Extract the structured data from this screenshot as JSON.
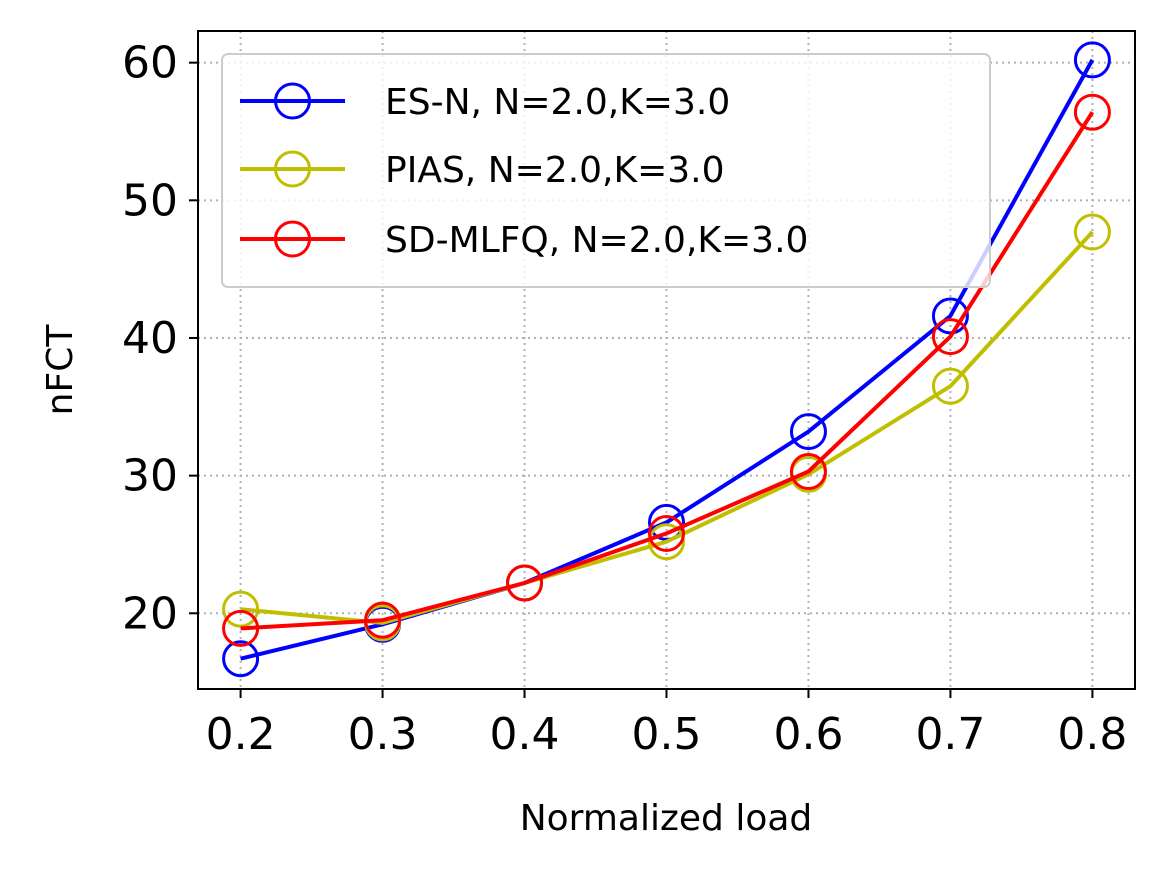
{
  "chart_data": {
    "type": "line",
    "xlabel": "Normalized load",
    "ylabel": "nFCT",
    "x": [
      0.2,
      0.3,
      0.4,
      0.5,
      0.6,
      0.7,
      0.8
    ],
    "x_tick_labels": [
      "0.2",
      "0.3",
      "0.4",
      "0.5",
      "0.6",
      "0.7",
      "0.8"
    ],
    "y_ticks": [
      20,
      30,
      40,
      50,
      60
    ],
    "y_tick_labels": [
      "20",
      "30",
      "40",
      "50",
      "60"
    ],
    "xlim": [
      0.17,
      0.83
    ],
    "ylim": [
      14.5,
      62.3
    ],
    "grid": true,
    "legend_position": "upper-left",
    "series": [
      {
        "name": "ES-N, N=2.0,K=3.0",
        "color": "#0000ff",
        "marker": "open-circle",
        "values": [
          16.7,
          19.2,
          22.2,
          26.6,
          33.2,
          41.6,
          60.2
        ]
      },
      {
        "name": "PIAS, N=2.0,K=3.0",
        "color": "#bfbf00",
        "marker": "open-circle",
        "values": [
          20.3,
          19.3,
          22.2,
          25.2,
          30.1,
          36.5,
          47.7
        ]
      },
      {
        "name": "SD-MLFQ, N=2.0,K=3.0",
        "color": "#ff0000",
        "marker": "open-circle",
        "values": [
          18.9,
          19.5,
          22.2,
          25.8,
          30.3,
          40.1,
          56.4
        ]
      }
    ]
  }
}
